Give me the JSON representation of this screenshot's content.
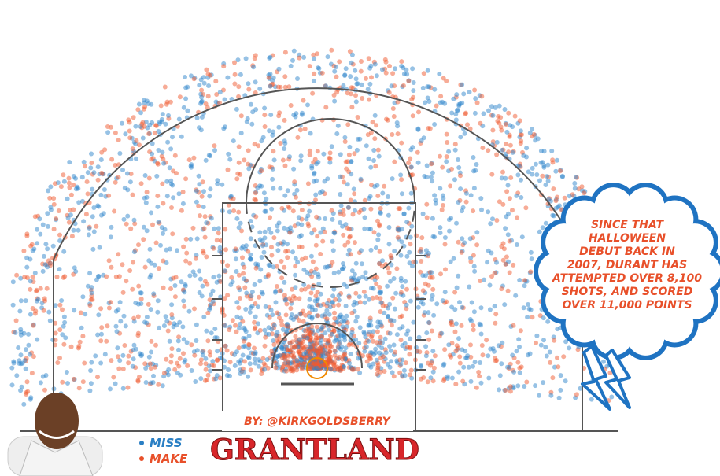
{
  "callout": {
    "lines": [
      "Since that",
      "Halloween",
      "debut back in",
      "2007, Durant has",
      "attempted over 8,100",
      "shots, and scored",
      "over 11,000 points"
    ]
  },
  "byline": "By: @KirkGoldsberry",
  "legend": {
    "miss": "Miss",
    "make": "Make"
  },
  "brand": "GRANTLAND"
}
